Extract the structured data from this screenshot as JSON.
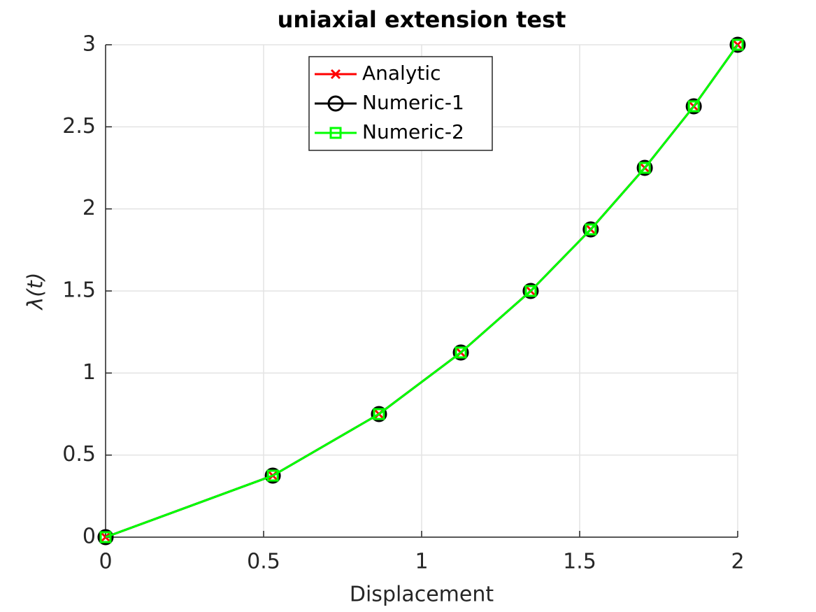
{
  "chart_data": {
    "type": "line",
    "title": "uniaxial extension test",
    "xlabel": "Displacement",
    "ylabel": "λ(t)",
    "x": [
      0,
      0.529,
      0.865,
      1.124,
      1.345,
      1.535,
      1.706,
      1.861,
      2
    ],
    "series": [
      {
        "name": "Analytic",
        "color": "#ff0000",
        "marker": "x",
        "values": [
          0,
          0.375,
          0.75,
          1.125,
          1.5,
          1.875,
          2.25,
          2.625,
          3
        ]
      },
      {
        "name": "Numeric-1",
        "color": "#000000",
        "marker": "o",
        "values": [
          0,
          0.375,
          0.75,
          1.125,
          1.5,
          1.875,
          2.25,
          2.625,
          3
        ]
      },
      {
        "name": "Numeric-2",
        "color": "#00ff00",
        "marker": "s",
        "values": [
          0,
          0.375,
          0.75,
          1.125,
          1.5,
          1.875,
          2.25,
          2.625,
          3
        ]
      }
    ],
    "xlim": [
      0,
      2
    ],
    "xticks": [
      0,
      0.5,
      1,
      1.5,
      2
    ],
    "ylim": [
      0,
      3
    ],
    "yticks": [
      0,
      0.5,
      1,
      1.5,
      2,
      2.5,
      3
    ],
    "grid": true,
    "legend_location": "north"
  }
}
